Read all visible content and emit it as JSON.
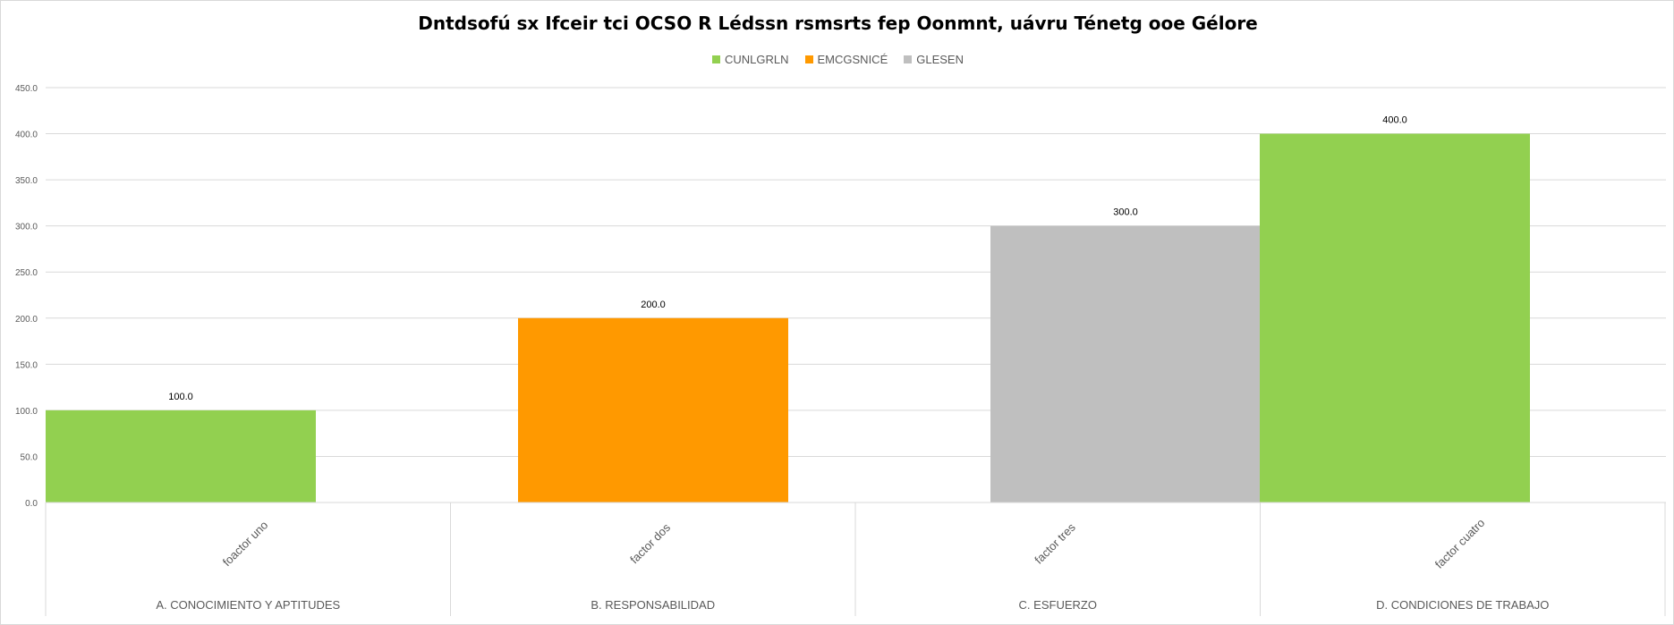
{
  "chart_data": {
    "type": "bar",
    "title": "Dntdsofú sx Ifceir tci OCSO R Lédssn rsmsrts fep Oonmnt, uávru Ténetg ooe Gélore",
    "xlabel": "",
    "ylabel": "",
    "ylim": [
      0,
      450
    ],
    "y_ticks": [
      "0.0",
      "50.0",
      "100.0",
      "150.0",
      "200.0",
      "250.0",
      "300.0",
      "350.0",
      "400.0",
      "450.0"
    ],
    "grid": true,
    "legend_position": "top",
    "legend": [
      {
        "name": "CUNLGRLN",
        "color": "#92d050"
      },
      {
        "name": "EMCGSNICÉ",
        "color": "#ff9900"
      },
      {
        "name": "GLESEN",
        "color": "#bfbfbf"
      }
    ],
    "groups": [
      "A. CONOCIMIENTO Y APTITUDES",
      "B. RESPONSABILIDAD",
      "C. ESFUERZO",
      "D. CONDICIONES DE TRABAJO"
    ],
    "categories": [
      "foactor uno",
      "factor dos",
      "factor tres",
      "factor cuatro"
    ],
    "values": [
      100,
      200,
      300,
      400
    ],
    "data_labels": [
      "100.0",
      "200.0",
      "300.0",
      "400.0"
    ],
    "bar_colors": [
      "#92d050",
      "#ff9900",
      "#bfbfbf",
      "#92d050"
    ]
  }
}
